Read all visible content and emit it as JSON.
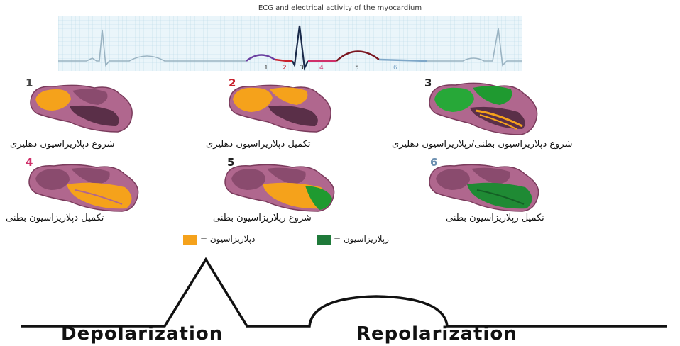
{
  "title": "ECG and electrical activity of the myocardium",
  "ecg_markers": [
    "1",
    "2",
    "3",
    "4",
    "5",
    "6"
  ],
  "stages": [
    {
      "num": "1",
      "label": "شروع دپلاریزاسیون دهلیزی",
      "color": "#444444"
    },
    {
      "num": "2",
      "label": "تکمیل دپلاریزاسیون دهلیزی",
      "color": "#c8202c"
    },
    {
      "num": "3",
      "label": "شروع دپلاریزاسیون بطنی/رپلاریزاسیون دهلیزی",
      "color": "#222222"
    },
    {
      "num": "4",
      "label": "تکمیل دپلاریزاسیون بطنی",
      "color": "#d0306a"
    },
    {
      "num": "5",
      "label": "شروع رپلاریزاسیون بطنی",
      "color": "#222222"
    },
    {
      "num": "6",
      "label": "تکمیل رپلاریزاسیون بطنی",
      "color": "#6b8fb0"
    }
  ],
  "legend": {
    "depolarization": "دپلاریزاسیون =",
    "repolarization": "رپلاریزاسیون =",
    "depolarization_color": "#f5a21b",
    "repolarization_color": "#1f7a3a"
  },
  "bottom": {
    "depolarization": "Depolarization",
    "repolarization": "Repolarization"
  }
}
